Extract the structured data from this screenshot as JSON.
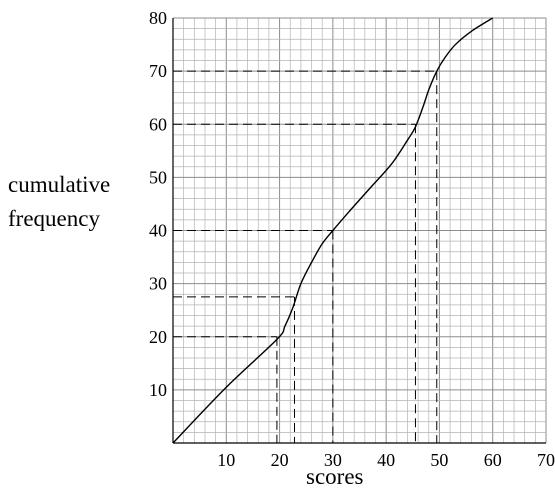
{
  "chart_data": {
    "type": "line",
    "title": "",
    "xlabel": "scores",
    "ylabel_lines": [
      "cumulative",
      "frequency"
    ],
    "xlim": [
      0,
      70
    ],
    "ylim": [
      0,
      80
    ],
    "x_ticks": [
      10,
      20,
      30,
      40,
      50,
      60,
      70
    ],
    "y_ticks": [
      10,
      20,
      30,
      40,
      50,
      60,
      70,
      80
    ],
    "grid": {
      "minor_step_x": 2,
      "minor_step_y": 2,
      "major_step_x": 10,
      "major_step_y": 10
    },
    "series": [
      {
        "x": [
          0,
          10,
          19.5,
          21,
          22.5,
          24,
          26,
          28,
          30,
          33,
          37,
          41,
          44,
          45.5,
          47,
          48,
          49.5,
          51,
          53,
          56,
          60
        ],
        "y": [
          0,
          10.5,
          19.5,
          22,
          25.5,
          30,
          34,
          37.5,
          40,
          43.5,
          48,
          52.5,
          57,
          59.5,
          63.5,
          66.5,
          70,
          72.5,
          75,
          77.5,
          80
        ]
      }
    ],
    "reference_lines": [
      {
        "level": 20,
        "x": 19.5
      },
      {
        "level": 27.5,
        "x": 22.8
      },
      {
        "level": 40,
        "x": 30
      },
      {
        "level": 60,
        "x": 45.5
      },
      {
        "level": 70,
        "x": 49.5
      }
    ]
  }
}
